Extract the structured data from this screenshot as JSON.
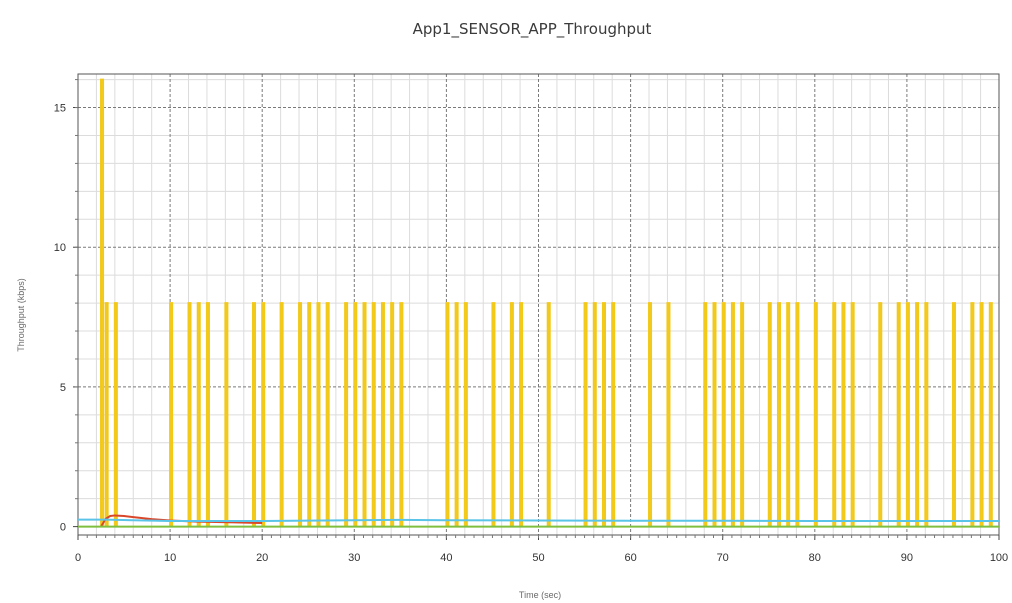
{
  "chart_data": {
    "type": "line",
    "title": "App1_SENSOR_APP_Throughput",
    "xlabel": "Time (sec)",
    "ylabel": "Throughput (kbps)",
    "xlim": [
      0,
      100
    ],
    "ylim": [
      -0.3,
      16.2
    ],
    "x_ticks": [
      0,
      10,
      20,
      30,
      40,
      50,
      60,
      70,
      80,
      90,
      100
    ],
    "y_ticks": [
      0,
      5,
      10,
      15
    ],
    "grid": true,
    "legend": "none",
    "colors": {
      "pulses": "#f2c919",
      "running_avg_red": "#d9472b",
      "running_avg_blue": "#59c3e8",
      "baseline_green": "#7fbf3f",
      "major_grid": "#7a7a7a",
      "minor_grid": "#dcdcdc",
      "frame": "#555555"
    },
    "series": [
      {
        "style": "pulses",
        "color": "#f2c919",
        "pulse_width": 0.22,
        "pulses": [
          {
            "x": 2.5,
            "y": 16
          },
          {
            "x": 3.0,
            "y": 8
          },
          {
            "x": 4.0,
            "y": 8
          },
          {
            "x": 10.0,
            "y": 8
          },
          {
            "x": 12.0,
            "y": 8
          },
          {
            "x": 13.0,
            "y": 8
          },
          {
            "x": 14.0,
            "y": 8
          },
          {
            "x": 16.0,
            "y": 8
          },
          {
            "x": 19.0,
            "y": 8
          },
          {
            "x": 20.0,
            "y": 8
          },
          {
            "x": 22.0,
            "y": 8
          },
          {
            "x": 24.0,
            "y": 8
          },
          {
            "x": 25.0,
            "y": 8
          },
          {
            "x": 26.0,
            "y": 8
          },
          {
            "x": 27.0,
            "y": 8
          },
          {
            "x": 29.0,
            "y": 8
          },
          {
            "x": 30.0,
            "y": 8
          },
          {
            "x": 31.0,
            "y": 8
          },
          {
            "x": 32.0,
            "y": 8
          },
          {
            "x": 33.0,
            "y": 8
          },
          {
            "x": 34.0,
            "y": 8
          },
          {
            "x": 35.0,
            "y": 8
          },
          {
            "x": 40.0,
            "y": 8
          },
          {
            "x": 41.0,
            "y": 8
          },
          {
            "x": 42.0,
            "y": 8
          },
          {
            "x": 45.0,
            "y": 8
          },
          {
            "x": 47.0,
            "y": 8
          },
          {
            "x": 48.0,
            "y": 8
          },
          {
            "x": 51.0,
            "y": 8
          },
          {
            "x": 55.0,
            "y": 8
          },
          {
            "x": 56.0,
            "y": 8
          },
          {
            "x": 57.0,
            "y": 8
          },
          {
            "x": 58.0,
            "y": 8
          },
          {
            "x": 62.0,
            "y": 8
          },
          {
            "x": 64.0,
            "y": 8
          },
          {
            "x": 68.0,
            "y": 8
          },
          {
            "x": 69.0,
            "y": 8
          },
          {
            "x": 70.0,
            "y": 8
          },
          {
            "x": 71.0,
            "y": 8
          },
          {
            "x": 72.0,
            "y": 8
          },
          {
            "x": 75.0,
            "y": 8
          },
          {
            "x": 76.0,
            "y": 8
          },
          {
            "x": 77.0,
            "y": 8
          },
          {
            "x": 78.0,
            "y": 8
          },
          {
            "x": 80.0,
            "y": 8
          },
          {
            "x": 82.0,
            "y": 8
          },
          {
            "x": 83.0,
            "y": 8
          },
          {
            "x": 84.0,
            "y": 8
          },
          {
            "x": 87.0,
            "y": 8
          },
          {
            "x": 89.0,
            "y": 8
          },
          {
            "x": 90.0,
            "y": 8
          },
          {
            "x": 91.0,
            "y": 8
          },
          {
            "x": 92.0,
            "y": 8
          },
          {
            "x": 95.0,
            "y": 8
          },
          {
            "x": 97.0,
            "y": 8
          },
          {
            "x": 98.0,
            "y": 8
          },
          {
            "x": 99.0,
            "y": 8
          }
        ]
      },
      {
        "style": "line",
        "color": "#d9472b",
        "x": [
          2.5,
          3.0,
          3.5,
          4.0,
          5.0,
          6.0,
          8.0,
          10.0,
          13.0,
          17.0,
          20.0
        ],
        "y": [
          0.0,
          0.28,
          0.38,
          0.4,
          0.38,
          0.34,
          0.27,
          0.22,
          0.18,
          0.15,
          0.13
        ]
      },
      {
        "style": "line",
        "color": "#59c3e8",
        "x": [
          0,
          3.0,
          10.0,
          20.0,
          30.0,
          35.0,
          40.0,
          50.0,
          60.0,
          70.0,
          80.0,
          90.0,
          100.0
        ],
        "y": [
          0.25,
          0.25,
          0.2,
          0.2,
          0.23,
          0.24,
          0.23,
          0.22,
          0.21,
          0.21,
          0.2,
          0.2,
          0.2
        ]
      },
      {
        "style": "line",
        "color": "#7fbf3f",
        "x": [
          0,
          100
        ],
        "y": [
          0.0,
          0.0
        ]
      }
    ]
  }
}
